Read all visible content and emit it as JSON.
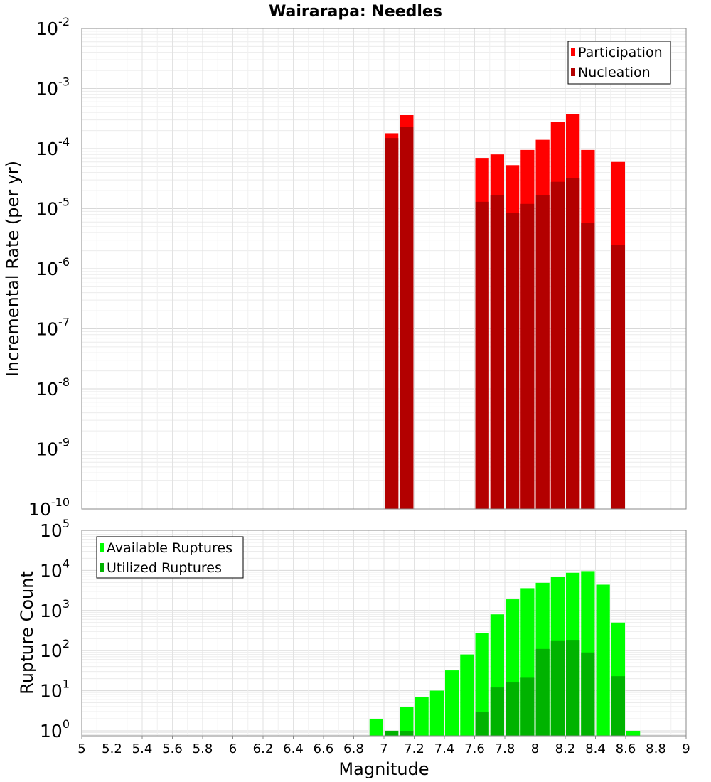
{
  "chart_data": [
    {
      "type": "bar",
      "title": "Wairarapa: Needles",
      "ylabel": "Incremental Rate (per yr)",
      "xlabel": "",
      "yscale": "log",
      "ylim": [
        1e-10,
        0.01
      ],
      "xlim": [
        5,
        9
      ],
      "grid": true,
      "legend_position": "top-right",
      "y_tick_labels": [
        {
          "base": "10",
          "exp": "-10"
        },
        {
          "base": "10",
          "exp": "-9"
        },
        {
          "base": "10",
          "exp": "-8"
        },
        {
          "base": "10",
          "exp": "-7"
        },
        {
          "base": "10",
          "exp": "-6"
        },
        {
          "base": "10",
          "exp": "-5"
        },
        {
          "base": "10",
          "exp": "-4"
        },
        {
          "base": "10",
          "exp": "-3"
        },
        {
          "base": "10",
          "exp": "-2"
        }
      ],
      "x": [
        7.05,
        7.15,
        7.65,
        7.75,
        7.85,
        7.95,
        8.05,
        8.15,
        8.25,
        8.35,
        8.55
      ],
      "series": [
        {
          "name": "Participation",
          "color": "#ff0000",
          "values": [
            0.00018,
            0.00036,
            7e-05,
            8e-05,
            5.3e-05,
            9.5e-05,
            0.00014,
            0.00028,
            0.00038,
            9.5e-05,
            6e-05
          ]
        },
        {
          "name": "Nucleation",
          "color": "#b30000",
          "values": [
            0.00015,
            0.00023,
            1.3e-05,
            1.7e-05,
            8.5e-06,
            1.2e-05,
            1.7e-05,
            2.8e-05,
            3.2e-05,
            5.8e-06,
            2.5e-06
          ]
        }
      ]
    },
    {
      "type": "bar",
      "title": "",
      "ylabel": "Rupture Count",
      "xlabel": "Magnitude",
      "yscale": "log",
      "ylim": [
        0.75,
        100000
      ],
      "xlim": [
        5,
        9
      ],
      "grid": true,
      "legend_position": "top-left",
      "y_tick_labels": [
        {
          "base": "10",
          "exp": "0"
        },
        {
          "base": "10",
          "exp": "1"
        },
        {
          "base": "10",
          "exp": "2"
        },
        {
          "base": "10",
          "exp": "3"
        },
        {
          "base": "10",
          "exp": "4"
        },
        {
          "base": "10",
          "exp": "5"
        }
      ],
      "x_tick_labels": [
        "5",
        "5.2",
        "5.4",
        "5.6",
        "5.8",
        "6",
        "6.2",
        "6.4",
        "6.6",
        "6.8",
        "7",
        "7.2",
        "7.4",
        "7.6",
        "7.8",
        "8",
        "8.2",
        "8.4",
        "8.6",
        "8.8",
        "9"
      ],
      "x": [
        6.95,
        7.05,
        7.15,
        7.25,
        7.35,
        7.45,
        7.55,
        7.65,
        7.75,
        7.85,
        7.95,
        8.05,
        8.15,
        8.25,
        8.35,
        8.45,
        8.55,
        8.65
      ],
      "series": [
        {
          "name": "Available Ruptures",
          "color": "#00ff00",
          "values": [
            2,
            1,
            4,
            7,
            10,
            32,
            80,
            270,
            800,
            1900,
            3600,
            4900,
            7000,
            8700,
            9600,
            4400,
            500,
            1
          ]
        },
        {
          "name": "Utilized Ruptures",
          "color": "#00b300",
          "values": [
            0,
            1,
            1,
            0,
            0,
            0,
            0,
            3,
            12,
            16,
            21,
            110,
            180,
            185,
            90,
            0,
            23,
            0
          ]
        }
      ]
    }
  ]
}
